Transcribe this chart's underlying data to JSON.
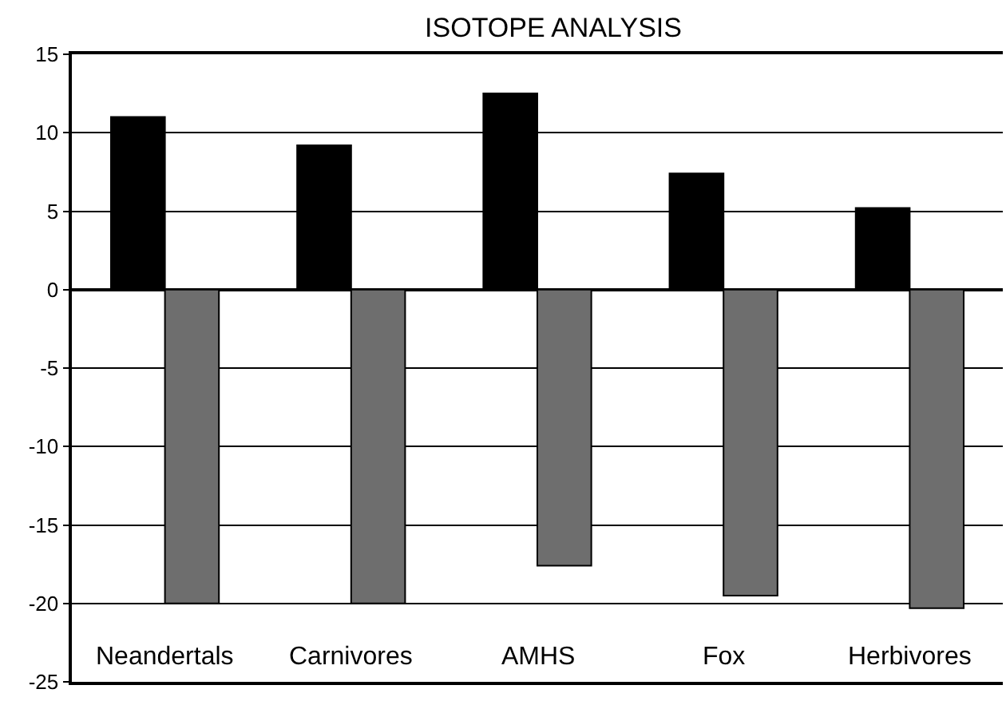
{
  "chart_data": {
    "type": "bar",
    "title": "ISOTOPE ANALYSIS",
    "categories": [
      "Neandertals",
      "Carnivores",
      "AMHS",
      "Fox",
      "Herbivores"
    ],
    "series": [
      {
        "color": "#000000",
        "values": [
          11,
          9.2,
          12.5,
          7.4,
          5.2
        ]
      },
      {
        "color": "#6e6e6e",
        "values": [
          -20,
          -20,
          -17.6,
          -19.5,
          -20.3
        ]
      }
    ],
    "ylim": [
      -25,
      15
    ],
    "yticks": [
      -25,
      -20,
      -15,
      -10,
      -5,
      0,
      5,
      10,
      15
    ],
    "grid": "y"
  }
}
